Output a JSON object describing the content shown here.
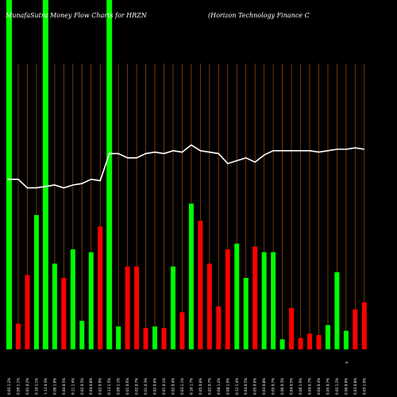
{
  "chart_data": {
    "type": "bar",
    "title": "MunafaSutra  Money Flow  Charts for HRZN",
    "subtitle": "(Horizon  Technology Finance  C",
    "ylim": [
      0,
      100
    ],
    "grid": "vertical",
    "colors": {
      "background": "#000000",
      "up": "#00ff00",
      "down": "#ff0000",
      "grid": "#8b4513",
      "line": "#ffffff",
      "text": "#ffffff"
    },
    "categories": [
      "0.05 1.2%",
      "0.06 1.1%",
      "0.01 0.2%",
      "0.10 1.1%",
      "1.12 4.5%",
      "0.06 1.0%",
      "0.04 0.5%",
      "0.11 1.4%",
      "0.02 0.5%",
      "0.04 0.8%",
      "0.02 0.9%",
      "0.13 1.5%",
      "0.09 1.1%",
      "0.01 0.6%",
      "0.02 0.7%",
      "0.01 0.3%",
      "0.02 0.6%",
      "0.01 0.1%",
      "0.02 0.4%",
      "0.03 1.1%",
      "0.10 1.7%",
      "0.05 0.8%",
      "0.02 0.7%",
      "0.08 1.2%",
      "0.08 1.0%",
      "0.12 1.4%",
      "0.04 0.5%",
      "0.05 0.6%",
      "0.03 0.8%",
      "0.05 0.7%",
      "0.00 0.3%",
      "0.04 0.5%",
      "0.06 1.0%",
      "0.04 0.7%",
      "0.04 0.4%",
      "0.05 0.7%",
      "0.05 1.2%",
      "0.06 0.9%",
      "0.03 0.8%",
      "0.05 1.0%"
    ],
    "extra_tick": "$",
    "bars": [
      {
        "value": 100,
        "color": "up"
      },
      {
        "value": 9,
        "color": "down"
      },
      {
        "value": 26,
        "color": "down"
      },
      {
        "value": 47,
        "color": "up"
      },
      {
        "value": 100,
        "color": "up"
      },
      {
        "value": 30,
        "color": "up"
      },
      {
        "value": 25,
        "color": "down"
      },
      {
        "value": 35,
        "color": "up"
      },
      {
        "value": 10,
        "color": "up"
      },
      {
        "value": 34,
        "color": "up"
      },
      {
        "value": 43,
        "color": "down"
      },
      {
        "value": 100,
        "color": "up"
      },
      {
        "value": 8,
        "color": "up"
      },
      {
        "value": 29,
        "color": "down"
      },
      {
        "value": 29,
        "color": "down"
      },
      {
        "value": 7.5,
        "color": "down"
      },
      {
        "value": 8,
        "color": "up"
      },
      {
        "value": 7.5,
        "color": "down"
      },
      {
        "value": 29,
        "color": "up"
      },
      {
        "value": 13,
        "color": "down"
      },
      {
        "value": 51,
        "color": "up"
      },
      {
        "value": 45,
        "color": "down"
      },
      {
        "value": 30,
        "color": "down"
      },
      {
        "value": 15,
        "color": "down"
      },
      {
        "value": 35,
        "color": "down"
      },
      {
        "value": 37,
        "color": "up"
      },
      {
        "value": 25,
        "color": "up"
      },
      {
        "value": 36,
        "color": "down"
      },
      {
        "value": 34,
        "color": "up"
      },
      {
        "value": 34,
        "color": "up"
      },
      {
        "value": 3.5,
        "color": "up"
      },
      {
        "value": 14.5,
        "color": "down"
      },
      {
        "value": 4,
        "color": "down"
      },
      {
        "value": 5.5,
        "color": "down"
      },
      {
        "value": 5,
        "color": "down"
      },
      {
        "value": 8.5,
        "color": "up"
      },
      {
        "value": 27,
        "color": "up"
      },
      {
        "value": 6.5,
        "color": "up"
      },
      {
        "value": 14,
        "color": "down"
      },
      {
        "value": 16.5,
        "color": "down"
      }
    ],
    "line": [
      59.5,
      59.5,
      56.5,
      56.5,
      57.0,
      57.5,
      56.5,
      57.5,
      58.0,
      59.5,
      59.0,
      68.5,
      68.5,
      67.0,
      67.0,
      68.5,
      69.0,
      68.5,
      69.5,
      69.0,
      71.5,
      69.5,
      69.0,
      68.5,
      65.0,
      66.0,
      67.0,
      65.5,
      68.0,
      69.5,
      69.5,
      69.5,
      69.5,
      69.5,
      69.0,
      69.5,
      70.0,
      70.0,
      70.5,
      70.0
    ]
  }
}
